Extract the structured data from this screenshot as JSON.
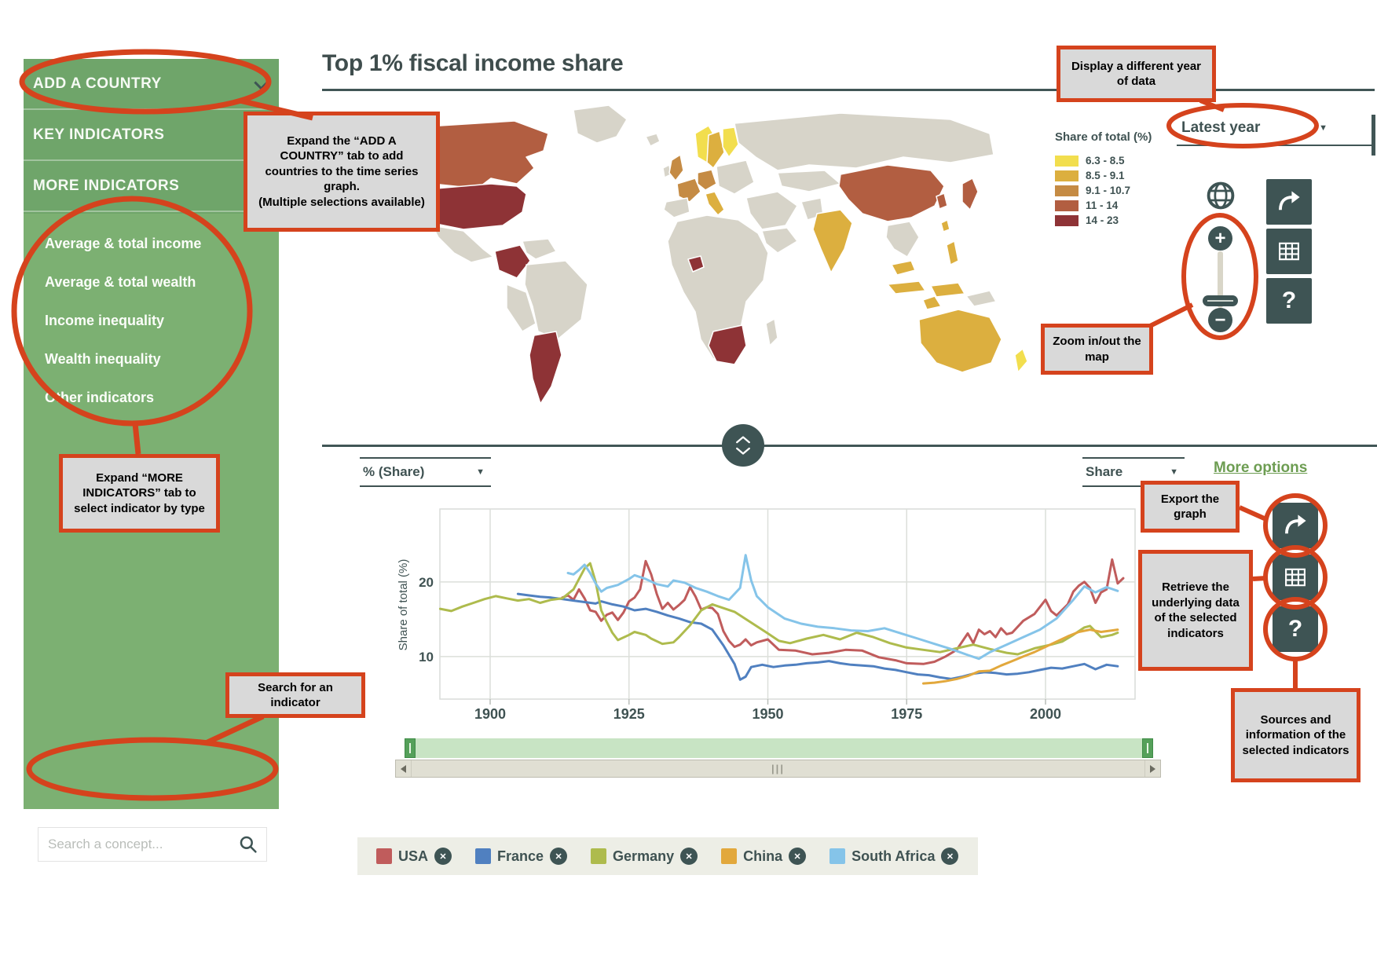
{
  "page": {
    "title": "Top 1% fiscal income share"
  },
  "icons": {
    "caret_down": "▼",
    "plus": "+",
    "minus": "−",
    "help": "?",
    "close": "✕",
    "grip": "|||"
  },
  "sidebar": {
    "tabs": [
      "ADD A COUNTRY",
      "KEY INDICATORS",
      "MORE INDICATORS"
    ],
    "items": [
      "Average & total income",
      "Average & total wealth",
      "Income inequality",
      "Wealth inequality",
      "Other indicators"
    ],
    "search_placeholder": "Search a concept..."
  },
  "map_panel": {
    "year_dropdown": "Latest year",
    "legend_title": "Share of total (%)",
    "legend_classes": [
      {
        "label": "6.3 - 8.5",
        "color": "#F2DE4E"
      },
      {
        "label": "8.5 - 9.1",
        "color": "#DCAF3F"
      },
      {
        "label": "9.1 - 10.7",
        "color": "#C58B44"
      },
      {
        "label": "11 - 14",
        "color": "#B25E41"
      },
      {
        "label": "14 - 23",
        "color": "#8E3336"
      }
    ],
    "land_color": "#D7D4C9",
    "regions": {
      "greenland": "land",
      "alaska": "land",
      "canada": "c4",
      "usa": "c5",
      "mexico": "land",
      "colombia": "c5",
      "venezuela": "land",
      "brazil": "land",
      "peru": "land",
      "argentina": "c5",
      "iceland": "land",
      "uk": "c3",
      "ireland": "land",
      "norway": "c1",
      "sweden": "c2",
      "finland": "c1",
      "france": "c3",
      "germany": "c3",
      "spain": "land",
      "italy": "c2",
      "east_europe": "land",
      "russia": "land",
      "central_asia": "land",
      "middle_east": "land",
      "arabia": "land",
      "africa": "land",
      "west_africa_spot": "c5",
      "southern_africa": "c5",
      "madagascar": "land",
      "pakistan": "land",
      "india": "c2",
      "china": "c4",
      "korea": "c4",
      "japan": "c4",
      "se_asia": "land",
      "malaysia": "c2",
      "indonesia_1": "c2",
      "indonesia_2": "c2",
      "indonesia_3": "c2",
      "philippines": "c2",
      "taiwan": "c2",
      "papua": "land",
      "australia": "c2",
      "new_zealand": "c1"
    }
  },
  "chart_ui": {
    "more_options": "More options"
  },
  "chart_data": {
    "type": "line",
    "title": "Top 1% fiscal income share",
    "xlabel": "",
    "ylabel": "Share of total (%)",
    "unit_selector": "% (Share)",
    "series_type_selector": "Share",
    "x_ticks": [
      1900,
      1925,
      1950,
      1975,
      2000
    ],
    "y_ticks": [
      10,
      20
    ],
    "x_range": [
      1891,
      2014
    ],
    "y_range": [
      4.3,
      29.8
    ],
    "grid": true,
    "legend_position": "bottom",
    "series": [
      {
        "name": "USA",
        "color": "#C05C5C",
        "points": [
          [
            1913,
            17.9
          ],
          [
            1914,
            18.2
          ],
          [
            1915,
            17.6
          ],
          [
            1916,
            19.0
          ],
          [
            1917,
            17.8
          ],
          [
            1918,
            16.2
          ],
          [
            1919,
            16.0
          ],
          [
            1920,
            14.8
          ],
          [
            1921,
            15.6
          ],
          [
            1922,
            15.9
          ],
          [
            1923,
            14.9
          ],
          [
            1924,
            15.9
          ],
          [
            1925,
            17.4
          ],
          [
            1926,
            17.9
          ],
          [
            1927,
            19.0
          ],
          [
            1928,
            22.8
          ],
          [
            1929,
            21.0
          ],
          [
            1930,
            18.4
          ],
          [
            1931,
            16.4
          ],
          [
            1932,
            17.2
          ],
          [
            1933,
            16.3
          ],
          [
            1934,
            16.9
          ],
          [
            1935,
            17.6
          ],
          [
            1936,
            19.3
          ],
          [
            1937,
            18.0
          ],
          [
            1938,
            16.3
          ],
          [
            1939,
            16.6
          ],
          [
            1940,
            16.5
          ],
          [
            1941,
            15.7
          ],
          [
            1942,
            13.4
          ],
          [
            1943,
            12.1
          ],
          [
            1944,
            11.3
          ],
          [
            1945,
            11.6
          ],
          [
            1946,
            12.3
          ],
          [
            1947,
            11.5
          ],
          [
            1948,
            11.9
          ],
          [
            1950,
            12.3
          ],
          [
            1952,
            10.9
          ],
          [
            1955,
            10.8
          ],
          [
            1958,
            10.3
          ],
          [
            1961,
            10.5
          ],
          [
            1964,
            10.9
          ],
          [
            1967,
            10.8
          ],
          [
            1970,
            9.9
          ],
          [
            1973,
            9.5
          ],
          [
            1975,
            9.1
          ],
          [
            1978,
            9.0
          ],
          [
            1980,
            9.3
          ],
          [
            1982,
            10.0
          ],
          [
            1984,
            10.9
          ],
          [
            1986,
            13.1
          ],
          [
            1987,
            11.8
          ],
          [
            1988,
            13.6
          ],
          [
            1989,
            13.0
          ],
          [
            1990,
            13.4
          ],
          [
            1991,
            12.6
          ],
          [
            1992,
            13.8
          ],
          [
            1993,
            13.0
          ],
          [
            1994,
            13.2
          ],
          [
            1996,
            14.8
          ],
          [
            1998,
            15.7
          ],
          [
            2000,
            17.6
          ],
          [
            2001,
            16.1
          ],
          [
            2002,
            15.5
          ],
          [
            2004,
            17.0
          ],
          [
            2005,
            18.7
          ],
          [
            2006,
            19.5
          ],
          [
            2007,
            20.0
          ],
          [
            2008,
            19.2
          ],
          [
            2009,
            17.2
          ],
          [
            2010,
            18.6
          ],
          [
            2011,
            19.0
          ],
          [
            2012,
            23.0
          ],
          [
            2013,
            19.8
          ],
          [
            2014,
            20.5
          ]
        ]
      },
      {
        "name": "France",
        "color": "#5080C0",
        "points": [
          [
            1905,
            18.4
          ],
          [
            1907,
            18.2
          ],
          [
            1909,
            18.0
          ],
          [
            1911,
            17.9
          ],
          [
            1913,
            17.7
          ],
          [
            1915,
            17.5
          ],
          [
            1917,
            17.3
          ],
          [
            1919,
            17.1
          ],
          [
            1920,
            17.4
          ],
          [
            1922,
            17.0
          ],
          [
            1924,
            16.7
          ],
          [
            1926,
            16.2
          ],
          [
            1928,
            16.4
          ],
          [
            1930,
            16.0
          ],
          [
            1932,
            15.5
          ],
          [
            1934,
            15.1
          ],
          [
            1936,
            14.6
          ],
          [
            1938,
            14.4
          ],
          [
            1940,
            13.6
          ],
          [
            1942,
            11.5
          ],
          [
            1944,
            9.0
          ],
          [
            1945,
            6.9
          ],
          [
            1946,
            7.3
          ],
          [
            1947,
            8.6
          ],
          [
            1949,
            8.9
          ],
          [
            1951,
            8.6
          ],
          [
            1953,
            8.8
          ],
          [
            1955,
            8.9
          ],
          [
            1957,
            9.1
          ],
          [
            1959,
            9.2
          ],
          [
            1961,
            9.4
          ],
          [
            1963,
            9.1
          ],
          [
            1965,
            8.9
          ],
          [
            1967,
            8.8
          ],
          [
            1969,
            8.7
          ],
          [
            1971,
            8.4
          ],
          [
            1973,
            8.2
          ],
          [
            1975,
            7.9
          ],
          [
            1977,
            7.6
          ],
          [
            1979,
            7.5
          ],
          [
            1981,
            7.2
          ],
          [
            1983,
            7.0
          ],
          [
            1985,
            7.3
          ],
          [
            1987,
            7.7
          ],
          [
            1989,
            7.9
          ],
          [
            1991,
            7.8
          ],
          [
            1993,
            7.6
          ],
          [
            1995,
            7.7
          ],
          [
            1997,
            7.9
          ],
          [
            1999,
            8.2
          ],
          [
            2001,
            8.5
          ],
          [
            2003,
            8.4
          ],
          [
            2005,
            8.7
          ],
          [
            2007,
            9.0
          ],
          [
            2009,
            8.3
          ],
          [
            2011,
            8.9
          ],
          [
            2013,
            8.7
          ]
        ]
      },
      {
        "name": "Germany",
        "color": "#AEBB4D",
        "points": [
          [
            1891,
            16.4
          ],
          [
            1893,
            16.1
          ],
          [
            1895,
            16.7
          ],
          [
            1897,
            17.2
          ],
          [
            1899,
            17.7
          ],
          [
            1901,
            18.1
          ],
          [
            1903,
            17.8
          ],
          [
            1905,
            17.5
          ],
          [
            1907,
            17.7
          ],
          [
            1909,
            17.2
          ],
          [
            1911,
            17.6
          ],
          [
            1913,
            17.8
          ],
          [
            1915,
            19.0
          ],
          [
            1917,
            21.8
          ],
          [
            1918,
            22.5
          ],
          [
            1919,
            20.0
          ],
          [
            1920,
            16.2
          ],
          [
            1921,
            14.6
          ],
          [
            1922,
            13.2
          ],
          [
            1923,
            12.2
          ],
          [
            1925,
            12.9
          ],
          [
            1926,
            13.3
          ],
          [
            1928,
            12.9
          ],
          [
            1929,
            12.4
          ],
          [
            1931,
            11.7
          ],
          [
            1933,
            11.9
          ],
          [
            1934,
            12.6
          ],
          [
            1936,
            14.2
          ],
          [
            1938,
            16.2
          ],
          [
            1940,
            17.0
          ],
          [
            1944,
            16.0
          ],
          [
            1950,
            13.1
          ],
          [
            1952,
            12.1
          ],
          [
            1954,
            11.8
          ],
          [
            1957,
            12.4
          ],
          [
            1960,
            12.9
          ],
          [
            1963,
            12.3
          ],
          [
            1966,
            13.2
          ],
          [
            1969,
            12.6
          ],
          [
            1972,
            11.8
          ],
          [
            1975,
            11.2
          ],
          [
            1978,
            10.9
          ],
          [
            1981,
            10.6
          ],
          [
            1984,
            11.1
          ],
          [
            1987,
            11.6
          ],
          [
            1990,
            11.0
          ],
          [
            1993,
            10.5
          ],
          [
            1995,
            10.3
          ],
          [
            1998,
            11.1
          ],
          [
            2001,
            11.6
          ],
          [
            2003,
            12.0
          ],
          [
            2005,
            12.9
          ],
          [
            2007,
            13.9
          ],
          [
            2008,
            14.1
          ],
          [
            2010,
            12.6
          ],
          [
            2012,
            12.9
          ],
          [
            2013,
            13.2
          ]
        ]
      },
      {
        "name": "China",
        "color": "#E2A83C",
        "points": [
          [
            1978,
            6.4
          ],
          [
            1980,
            6.5
          ],
          [
            1982,
            6.7
          ],
          [
            1984,
            7.0
          ],
          [
            1986,
            7.4
          ],
          [
            1988,
            8.0
          ],
          [
            1990,
            8.1
          ],
          [
            1992,
            8.8
          ],
          [
            1994,
            9.4
          ],
          [
            1996,
            10.0
          ],
          [
            1998,
            10.6
          ],
          [
            2000,
            11.3
          ],
          [
            2002,
            12.0
          ],
          [
            2004,
            12.7
          ],
          [
            2006,
            13.3
          ],
          [
            2008,
            13.6
          ],
          [
            2010,
            13.3
          ],
          [
            2012,
            13.5
          ],
          [
            2013,
            13.6
          ]
        ]
      },
      {
        "name": "South Africa",
        "color": "#85C4E9",
        "points": [
          [
            1914,
            21.2
          ],
          [
            1915,
            21.0
          ],
          [
            1916,
            21.6
          ],
          [
            1917,
            22.3
          ],
          [
            1918,
            21.2
          ],
          [
            1919,
            19.8
          ],
          [
            1920,
            18.7
          ],
          [
            1921,
            19.2
          ],
          [
            1923,
            19.6
          ],
          [
            1925,
            20.4
          ],
          [
            1926,
            20.9
          ],
          [
            1928,
            20.4
          ],
          [
            1930,
            19.7
          ],
          [
            1932,
            19.4
          ],
          [
            1933,
            20.2
          ],
          [
            1935,
            19.9
          ],
          [
            1937,
            19.2
          ],
          [
            1939,
            18.7
          ],
          [
            1941,
            18.1
          ],
          [
            1943,
            17.6
          ],
          [
            1945,
            19.2
          ],
          [
            1946,
            23.6
          ],
          [
            1947,
            20.2
          ],
          [
            1948,
            18.1
          ],
          [
            1950,
            16.6
          ],
          [
            1953,
            15.1
          ],
          [
            1956,
            14.4
          ],
          [
            1959,
            14.0
          ],
          [
            1962,
            13.8
          ],
          [
            1965,
            13.5
          ],
          [
            1968,
            13.4
          ],
          [
            1971,
            13.8
          ],
          [
            1974,
            13.1
          ],
          [
            1977,
            12.4
          ],
          [
            1980,
            11.7
          ],
          [
            1983,
            11.0
          ],
          [
            1986,
            10.2
          ],
          [
            1988,
            9.7
          ],
          [
            1990,
            10.6
          ],
          [
            1993,
            11.6
          ],
          [
            1996,
            12.6
          ],
          [
            1999,
            13.6
          ],
          [
            2002,
            15.1
          ],
          [
            2005,
            17.6
          ],
          [
            2007,
            19.4
          ],
          [
            2009,
            18.6
          ],
          [
            2011,
            19.3
          ],
          [
            2013,
            18.8
          ]
        ]
      }
    ]
  },
  "annotations": {
    "add_country": "Expand the “ADD A COUNTRY” tab to add countries to the time series graph.\n(Multiple selections available)",
    "more_indicators": "Expand “MORE INDICATORS” tab to select indicator by type",
    "search": "Search for an indicator",
    "year": "Display a different year of data",
    "zoom_map": "Zoom in/out the map",
    "export": "Export the graph",
    "retrieve": "Retrieve the underlying data of the selected indicators",
    "sources": "Sources and information of the selected indicators"
  }
}
